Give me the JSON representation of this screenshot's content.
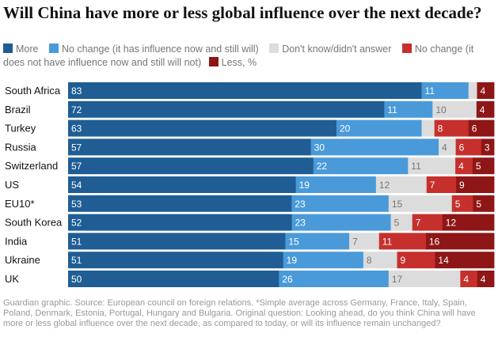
{
  "chart_data": {
    "type": "bar",
    "orientation": "horizontal",
    "stacked": true,
    "normalized": true,
    "title": "Will China have more or less global influence over the next decade?",
    "xlabel": "",
    "ylabel": "",
    "xlim": [
      0,
      100
    ],
    "categories": [
      "South Africa",
      "Brazil",
      "Turkey",
      "Russia",
      "Switzerland",
      "US",
      "EU10*",
      "South Korea",
      "India",
      "Ukraine",
      "UK"
    ],
    "series": [
      {
        "key": "more",
        "name": "More",
        "color": "#1f5d94",
        "label_color": "#ffffff",
        "values": [
          83,
          72,
          63,
          57,
          57,
          54,
          53,
          52,
          51,
          51,
          50
        ]
      },
      {
        "key": "no_change_has",
        "name": "No change (it has influence now and still will)",
        "color": "#4a9ad9",
        "label_color": "#ffffff",
        "values": [
          11,
          11,
          20,
          30,
          22,
          19,
          23,
          23,
          15,
          19,
          26
        ]
      },
      {
        "key": "dont_know",
        "name": "Don't know/didn't answer",
        "color": "#dcdcdc",
        "label_color": "#767676",
        "values": [
          2,
          10,
          3,
          4,
          11,
          12,
          15,
          5,
          7,
          8,
          17
        ]
      },
      {
        "key": "no_change_not",
        "name": "No change (it does not have influence now and still will not)",
        "color": "#c6302c",
        "label_color": "#ffffff",
        "values": [
          0,
          0,
          8,
          6,
          4,
          7,
          5,
          7,
          11,
          9,
          4
        ]
      },
      {
        "key": "less",
        "name": "Less, %",
        "color": "#8e1616",
        "label_color": "#ffffff",
        "values": [
          4,
          4,
          6,
          3,
          5,
          9,
          5,
          12,
          16,
          14,
          4
        ]
      }
    ],
    "labels": [
      [
        "83",
        "11",
        "",
        "",
        "4"
      ],
      [
        "72",
        "11",
        "10",
        "",
        "4"
      ],
      [
        "63",
        "20",
        "",
        "8",
        "6"
      ],
      [
        "57",
        "30",
        "4",
        "6",
        "3"
      ],
      [
        "57",
        "22",
        "11",
        "4",
        "5"
      ],
      [
        "54",
        "19",
        "12",
        "7",
        "9"
      ],
      [
        "53",
        "23",
        "15",
        "5",
        "5"
      ],
      [
        "52",
        "23",
        "5",
        "7",
        "12"
      ],
      [
        "51",
        "15",
        "7",
        "11",
        "16"
      ],
      [
        "51",
        "19",
        "8",
        "9",
        "14"
      ],
      [
        "50",
        "26",
        "17",
        "4",
        "4"
      ]
    ],
    "legend_position": "top"
  },
  "legend": {
    "more": "More",
    "no_change_has": "No change (it has influence now and still will)",
    "dont_know": "Don't know/didn't answer",
    "no_change_not": "No change (it does not have influence now and still will not)",
    "less": "Less, %"
  },
  "footnote": "Guardian graphic. Source: European council on foreign relations. *Simple average across Germany, France, Italy, Spain, Poland, Denmark, Estonia, Portugal, Hungary and Bulgaria. Original question: Looking ahead, do you think China will have more or less global influence over the next decade, as compared to today, or will its influence remain unchanged?"
}
